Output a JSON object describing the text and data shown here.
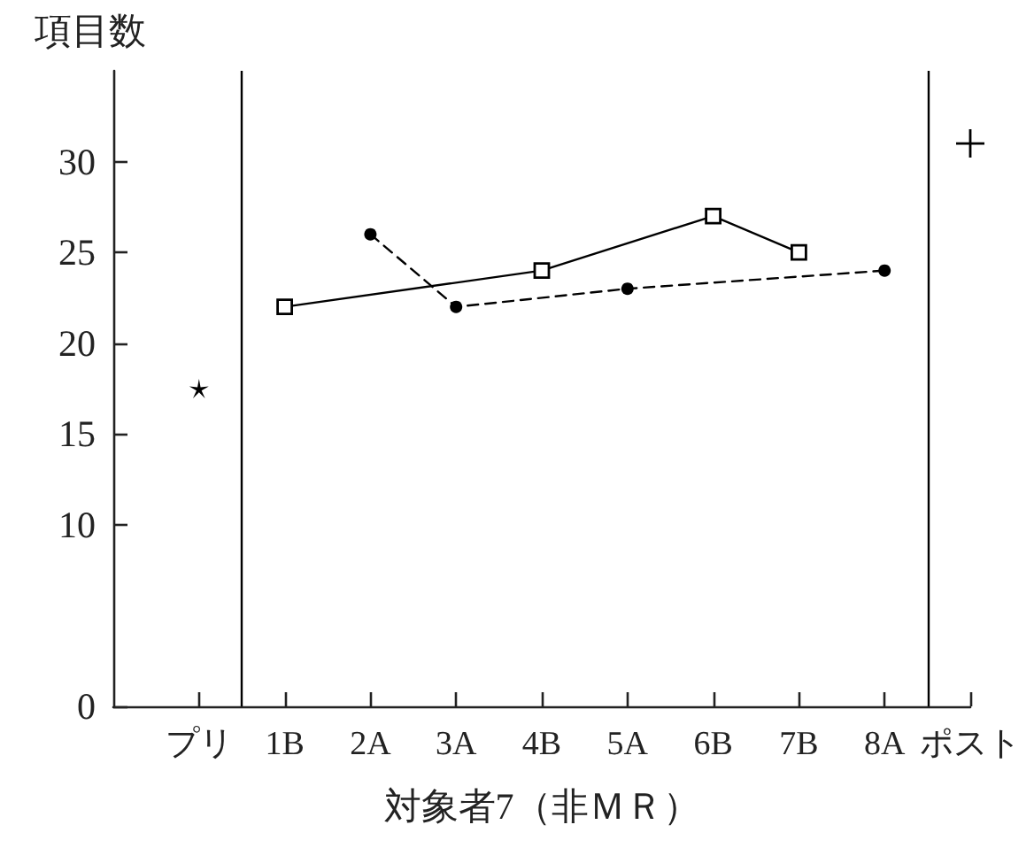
{
  "chart_data": {
    "type": "line",
    "xlabel": "対象者7（非ＭＲ）",
    "ylabel": "項目数",
    "xlim": [
      -1,
      9
    ],
    "xticks": [
      {
        "value": 0,
        "label": "プリ"
      },
      {
        "value": 1,
        "label": "1B"
      },
      {
        "value": 2,
        "label": "2A"
      },
      {
        "value": 3,
        "label": "3A"
      },
      {
        "value": 4,
        "label": "4B"
      },
      {
        "value": 5,
        "label": "5A"
      },
      {
        "value": 6,
        "label": "6B"
      },
      {
        "value": 7,
        "label": "7B"
      },
      {
        "value": 8,
        "label": "8A"
      },
      {
        "value": 9,
        "label": "ポスト"
      }
    ],
    "ylim": [
      0,
      35
    ],
    "yticks": [
      0,
      10,
      15,
      20,
      25,
      30
    ],
    "series": [
      {
        "color": "#000000",
        "x": [
          1,
          4,
          6,
          7
        ],
        "values": [
          22,
          24,
          27,
          25
        ],
        "marker": "square",
        "line_style": "solid"
      },
      {
        "color": "#000000",
        "x": [
          2,
          3,
          5,
          8
        ],
        "values": [
          26,
          22,
          23,
          24
        ],
        "marker": "circle",
        "line_style": "dashed"
      },
      {
        "type": "scatter",
        "color": "#000000",
        "x": [
          0
        ],
        "values": [
          17.5
        ],
        "marker": "star"
      },
      {
        "type": "scatter",
        "color": "#000000",
        "x": [
          9
        ],
        "values": [
          31
        ],
        "marker": "cross"
      }
    ],
    "ref_lines": [
      {
        "axis": "x",
        "value": 0.5,
        "color": "#000000"
      },
      {
        "axis": "x",
        "value": 8.5,
        "color": "#000000"
      }
    ],
    "grid": false
  }
}
